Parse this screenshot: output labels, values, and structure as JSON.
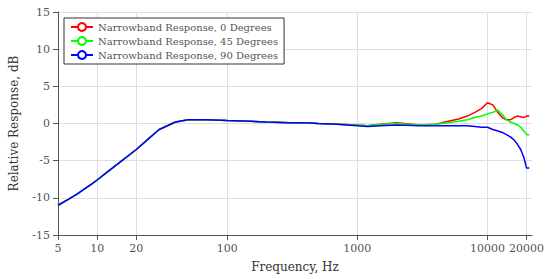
{
  "chart_data": {
    "type": "line",
    "xlabel": "Frequency, Hz",
    "ylabel": "Relative Response, dB",
    "log": "x",
    "x": [
      5,
      6,
      7,
      8,
      9,
      10,
      12,
      15,
      20,
      25,
      30,
      40,
      50,
      70,
      100,
      150,
      200,
      300,
      400,
      500,
      700,
      1000,
      1200,
      1500,
      2000,
      3000,
      4000,
      5000,
      6000,
      7000,
      8000,
      9000,
      10000,
      11000,
      12000,
      13000,
      14000,
      15000,
      16000,
      17000,
      18000,
      19000,
      20000,
      21000
    ],
    "series": [
      {
        "name": "Narrowband Response, 0 Degrees",
        "color": "red",
        "values": [
          -11.0,
          -10.2,
          -9.5,
          -8.8,
          -8.2,
          -7.6,
          -6.5,
          -5.2,
          -3.5,
          -2.0,
          -0.8,
          0.2,
          0.5,
          0.5,
          0.4,
          0.3,
          0.2,
          0.1,
          0.1,
          0.0,
          -0.1,
          -0.2,
          -0.3,
          -0.1,
          0.1,
          -0.2,
          -0.1,
          0.3,
          0.6,
          1.0,
          1.5,
          2.0,
          2.8,
          2.5,
          1.5,
          0.8,
          0.5,
          0.5,
          0.8,
          1.0,
          0.9,
          0.8,
          1.0,
          1.0
        ]
      },
      {
        "name": "Narrowband Response, 45 Degrees",
        "color": "lime",
        "values": [
          -11.0,
          -10.2,
          -9.5,
          -8.8,
          -8.2,
          -7.6,
          -6.5,
          -5.2,
          -3.5,
          -2.0,
          -0.8,
          0.2,
          0.5,
          0.5,
          0.4,
          0.3,
          0.2,
          0.1,
          0.1,
          0.0,
          -0.1,
          -0.2,
          -0.3,
          -0.1,
          0.0,
          -0.2,
          -0.1,
          0.1,
          0.3,
          0.5,
          0.8,
          1.0,
          1.3,
          1.5,
          1.8,
          1.2,
          0.5,
          0.2,
          0.0,
          -0.2,
          -0.5,
          -1.0,
          -1.5,
          -1.5
        ]
      },
      {
        "name": "Narrowband Response, 90 Degrees",
        "color": "blue",
        "values": [
          -11.0,
          -10.2,
          -9.5,
          -8.8,
          -8.2,
          -7.6,
          -6.5,
          -5.2,
          -3.5,
          -2.0,
          -0.8,
          0.2,
          0.5,
          0.5,
          0.4,
          0.3,
          0.2,
          0.1,
          0.1,
          0.0,
          -0.1,
          -0.3,
          -0.4,
          -0.3,
          -0.2,
          -0.3,
          -0.3,
          -0.3,
          -0.3,
          -0.3,
          -0.4,
          -0.5,
          -0.5,
          -0.8,
          -1.0,
          -1.2,
          -1.5,
          -1.8,
          -2.2,
          -2.8,
          -3.5,
          -4.5,
          -6.0,
          -6.0
        ]
      }
    ],
    "xlim": [
      5,
      22000
    ],
    "xticks": [
      5,
      10,
      20,
      100,
      1000,
      10000,
      20000
    ],
    "ylim": [
      -15,
      15
    ],
    "yticks": [
      -15,
      -10,
      -5,
      0,
      5,
      10,
      15
    ],
    "grid": true,
    "legend": "upper left"
  }
}
